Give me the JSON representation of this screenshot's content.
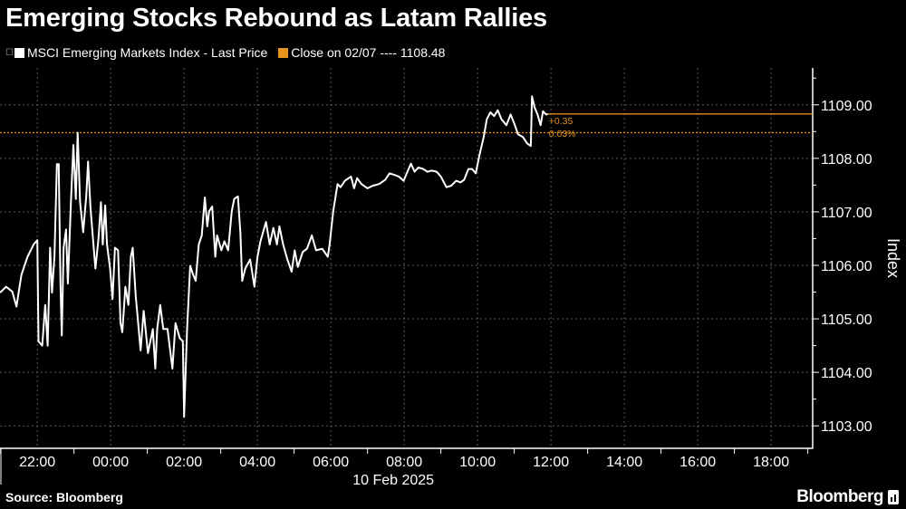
{
  "title": "Emerging Stocks Rebound as Latam Rallies",
  "legend": {
    "series_label": "MSCI Emerging Markets Index - Last Price",
    "close_label": "Close on 02/07 ---- 1108.48"
  },
  "colors": {
    "background": "#000000",
    "series": "#ffffff",
    "close_line": "#e8911c",
    "grid": "#5a5a5a"
  },
  "source": "Source: Bloomberg",
  "brand": "Bloomberg",
  "chart_data": {
    "type": "line",
    "title": "Emerging Stocks Rebound as Latam Rallies",
    "ylabel": "Index",
    "xlabel": "10 Feb 2025",
    "xlim": [
      "2025-02-09 20:59",
      "2025-02-10 19:08"
    ],
    "ylim": [
      1102.58,
      1109.69
    ],
    "y_axis_side": "right",
    "grid": true,
    "x_ticks": [
      "22:00",
      "00:00",
      "02:00",
      "04:00",
      "06:00",
      "08:00",
      "10:00",
      "12:00",
      "14:00",
      "16:00",
      "18:00"
    ],
    "y_ticks": [
      "1103.00",
      "1104.00",
      "1105.00",
      "1106.00",
      "1107.00",
      "1108.00",
      "1109.00"
    ],
    "reference_line": {
      "label": "Close on 02/07",
      "value": 1108.48
    },
    "last_value": 1108.83,
    "change_annotation": {
      "change": "+0.35",
      "percent": "0.03%"
    },
    "series": [
      {
        "name": "MSCI Emerging Markets Index - Last Price",
        "points": [
          [
            "20:59",
            1105.49
          ],
          [
            "21:09",
            1105.6
          ],
          [
            "21:19",
            1105.51
          ],
          [
            "21:26",
            1105.23
          ],
          [
            "21:34",
            1105.82
          ],
          [
            "21:44",
            1106.16
          ],
          [
            "21:54",
            1106.39
          ],
          [
            "22:00",
            1106.47
          ],
          [
            "22:02",
            1104.58
          ],
          [
            "22:08",
            1104.5
          ],
          [
            "22:13",
            1105.26
          ],
          [
            "22:17",
            1104.5
          ],
          [
            "22:21",
            1106.33
          ],
          [
            "22:24",
            1105.49
          ],
          [
            "22:28",
            1106.16
          ],
          [
            "22:32",
            1107.89
          ],
          [
            "22:35",
            1107.89
          ],
          [
            "22:38",
            1105.6
          ],
          [
            "22:40",
            1104.69
          ],
          [
            "22:43",
            1106.33
          ],
          [
            "22:47",
            1106.67
          ],
          [
            "22:50",
            1105.66
          ],
          [
            "22:55",
            1107.18
          ],
          [
            "22:59",
            1108.25
          ],
          [
            "23:03",
            1107.24
          ],
          [
            "23:06",
            1108.48
          ],
          [
            "23:10",
            1107.18
          ],
          [
            "23:15",
            1106.62
          ],
          [
            "23:20",
            1107.29
          ],
          [
            "23:23",
            1107.94
          ],
          [
            "23:27",
            1107.07
          ],
          [
            "23:35",
            1105.94
          ],
          [
            "23:40",
            1106.5
          ],
          [
            "23:44",
            1107.18
          ],
          [
            "23:47",
            1106.39
          ],
          [
            "23:51",
            1107.12
          ],
          [
            "23:54",
            1106.39
          ],
          [
            "23:59",
            1105.94
          ],
          [
            "00:03",
            1105.37
          ],
          [
            "00:07",
            1106.33
          ],
          [
            "00:12",
            1106.28
          ],
          [
            "00:16",
            1104.92
          ],
          [
            "00:19",
            1104.75
          ],
          [
            "00:24",
            1105.6
          ],
          [
            "00:29",
            1105.26
          ],
          [
            "00:33",
            1106.16
          ],
          [
            "00:36",
            1106.33
          ],
          [
            "00:41",
            1105.43
          ],
          [
            "00:49",
            1104.41
          ],
          [
            "00:54",
            1105.15
          ],
          [
            "01:01",
            1104.36
          ],
          [
            "01:09",
            1104.81
          ],
          [
            "01:13",
            1104.07
          ],
          [
            "01:16",
            1104.81
          ],
          [
            "01:21",
            1105.26
          ],
          [
            "01:26",
            1104.81
          ],
          [
            "01:33",
            1104.81
          ],
          [
            "01:41",
            1104.07
          ],
          [
            "01:46",
            1104.92
          ],
          [
            "01:53",
            1104.64
          ],
          [
            "01:58",
            1104.58
          ],
          [
            "02:00",
            1103.17
          ],
          [
            "02:05",
            1104.81
          ],
          [
            "02:10",
            1105.99
          ],
          [
            "02:15",
            1105.82
          ],
          [
            "02:19",
            1105.71
          ],
          [
            "02:24",
            1106.39
          ],
          [
            "02:29",
            1106.56
          ],
          [
            "02:34",
            1107.27
          ],
          [
            "02:38",
            1106.73
          ],
          [
            "02:41",
            1107.01
          ],
          [
            "02:46",
            1107.1
          ],
          [
            "02:51",
            1106.16
          ],
          [
            "02:54",
            1106.56
          ],
          [
            "03:01",
            1106.28
          ],
          [
            "03:06",
            1106.45
          ],
          [
            "03:12",
            1106.28
          ],
          [
            "03:18",
            1107.01
          ],
          [
            "03:22",
            1107.24
          ],
          [
            "03:28",
            1107.29
          ],
          [
            "03:32",
            1106.62
          ],
          [
            "03:35",
            1105.71
          ],
          [
            "03:40",
            1105.94
          ],
          [
            "03:48",
            1106.11
          ],
          [
            "03:55",
            1105.6
          ],
          [
            "04:00",
            1106.16
          ],
          [
            "04:05",
            1106.45
          ],
          [
            "04:14",
            1106.81
          ],
          [
            "04:20",
            1106.39
          ],
          [
            "04:26",
            1106.7
          ],
          [
            "04:32",
            1106.39
          ],
          [
            "04:36",
            1106.73
          ],
          [
            "04:42",
            1106.39
          ],
          [
            "04:49",
            1106.11
          ],
          [
            "04:56",
            1105.88
          ],
          [
            "05:01",
            1106.28
          ],
          [
            "05:06",
            1105.97
          ],
          [
            "05:14",
            1106.25
          ],
          [
            "05:21",
            1106.31
          ],
          [
            "05:29",
            1106.56
          ],
          [
            "05:36",
            1106.28
          ],
          [
            "05:46",
            1106.31
          ],
          [
            "05:55",
            1106.16
          ],
          [
            "05:58",
            1106.39
          ],
          [
            "06:04",
            1107.01
          ],
          [
            "06:11",
            1107.52
          ],
          [
            "06:16",
            1107.46
          ],
          [
            "06:23",
            1107.58
          ],
          [
            "06:33",
            1107.66
          ],
          [
            "06:38",
            1107.44
          ],
          [
            "06:43",
            1107.63
          ],
          [
            "06:50",
            1107.52
          ],
          [
            "07:00",
            1107.44
          ],
          [
            "07:09",
            1107.49
          ],
          [
            "07:19",
            1107.52
          ],
          [
            "07:29",
            1107.6
          ],
          [
            "07:36",
            1107.72
          ],
          [
            "07:44",
            1107.69
          ],
          [
            "07:51",
            1107.66
          ],
          [
            "07:59",
            1107.58
          ],
          [
            "08:06",
            1107.77
          ],
          [
            "08:11",
            1107.9
          ],
          [
            "08:17",
            1107.75
          ],
          [
            "08:23",
            1107.83
          ],
          [
            "08:31",
            1107.8
          ],
          [
            "08:38",
            1107.75
          ],
          [
            "08:45",
            1107.77
          ],
          [
            "08:53",
            1107.75
          ],
          [
            "09:00",
            1107.66
          ],
          [
            "09:09",
            1107.46
          ],
          [
            "09:17",
            1107.49
          ],
          [
            "09:25",
            1107.58
          ],
          [
            "09:32",
            1107.55
          ],
          [
            "09:38",
            1107.6
          ],
          [
            "09:45",
            1107.8
          ],
          [
            "09:51",
            1107.8
          ],
          [
            "09:57",
            1107.72
          ],
          [
            "10:03",
            1108.06
          ],
          [
            "10:10",
            1108.4
          ],
          [
            "10:15",
            1108.73
          ],
          [
            "10:21",
            1108.86
          ],
          [
            "10:27",
            1108.79
          ],
          [
            "10:33",
            1108.9
          ],
          [
            "10:39",
            1108.73
          ],
          [
            "10:47",
            1108.62
          ],
          [
            "10:54",
            1108.82
          ],
          [
            "11:01",
            1108.62
          ],
          [
            "11:06",
            1108.45
          ],
          [
            "11:14",
            1108.4
          ],
          [
            "11:21",
            1108.28
          ],
          [
            "11:27",
            1108.23
          ],
          [
            "11:29",
            1109.16
          ],
          [
            "11:33",
            1108.96
          ],
          [
            "11:38",
            1108.82
          ],
          [
            "11:43",
            1108.62
          ],
          [
            "11:47",
            1108.88
          ],
          [
            "11:52",
            1108.82
          ],
          [
            "11:55",
            1108.83
          ]
        ]
      }
    ]
  }
}
